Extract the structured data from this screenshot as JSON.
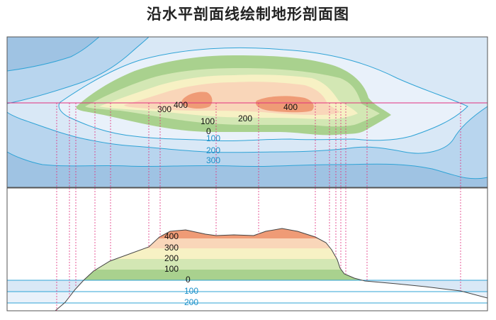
{
  "title": "沿水平剖面线绘制地形剖面图",
  "map": {
    "land_labels": [
      "300",
      "400",
      "400",
      "200",
      "100",
      "0"
    ],
    "sea_labels": [
      "100",
      "200",
      "300"
    ]
  },
  "profile": {
    "land_levels": [
      "400",
      "300",
      "200",
      "100",
      "0"
    ],
    "sea_levels": [
      "100",
      "200"
    ]
  },
  "colors": {
    "sea_deep": "#9fc3e3",
    "sea_mid": "#b8d5ee",
    "sea_shallow": "#d9e8f6",
    "land_0_100": "#a9d18e",
    "land_100_200": "#d3e7b4",
    "land_200_300": "#f7f1c4",
    "land_300_400": "#f9d6b9",
    "land_400": "#ef9b76",
    "contour_sea": "#2fa3d6",
    "profile_line": "#e2307e"
  }
}
